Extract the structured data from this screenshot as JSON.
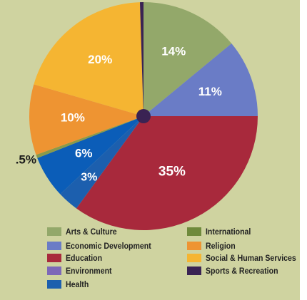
{
  "chart_data": {
    "type": "pie",
    "title": "",
    "slices": [
      {
        "label": "International",
        "value": 14,
        "display": "14%",
        "color": "#93a86a"
      },
      {
        "label": "Economic Development",
        "value": 11,
        "display": "11%",
        "color": "#6a7cc6"
      },
      {
        "label": "Education",
        "value": 35,
        "display": "35%",
        "color": "#a8293c"
      },
      {
        "label": "Health",
        "value": 3,
        "display": "3%",
        "color": "#1c5fae"
      },
      {
        "label": "Environment",
        "value": 6,
        "display": "6%",
        "color": "#0b5db8"
      },
      {
        "label": "Arts & Culture",
        "value": 0.5,
        "display": ".5%",
        "color": "#8a9a4a"
      },
      {
        "label": "Religion",
        "value": 10,
        "display": "10%",
        "color": "#ee9432"
      },
      {
        "label": "Social & Human Services",
        "value": 20,
        "display": "20%",
        "color": "#f5b532"
      },
      {
        "label": "Sports & Recreation",
        "value": 0.5,
        "display": "",
        "color": "#3a2353"
      }
    ],
    "legend_placement": "bottom",
    "legend": [
      {
        "label": "Arts & Culture",
        "color": "#93a86a"
      },
      {
        "label": "Economic Development",
        "color": "#6a7cc6"
      },
      {
        "label": "Education",
        "color": "#a8293c"
      },
      {
        "label": "Environment",
        "color": "#7d68b8"
      },
      {
        "label": "Health",
        "color": "#1c5fae"
      },
      {
        "label": "International",
        "color": "#6f8a3c"
      },
      {
        "label": "Religion",
        "color": "#ee9432"
      },
      {
        "label": "Social & Human Services",
        "color": "#f5b532"
      },
      {
        "label": "Sports & Recreation",
        "color": "#3a2353"
      }
    ]
  }
}
